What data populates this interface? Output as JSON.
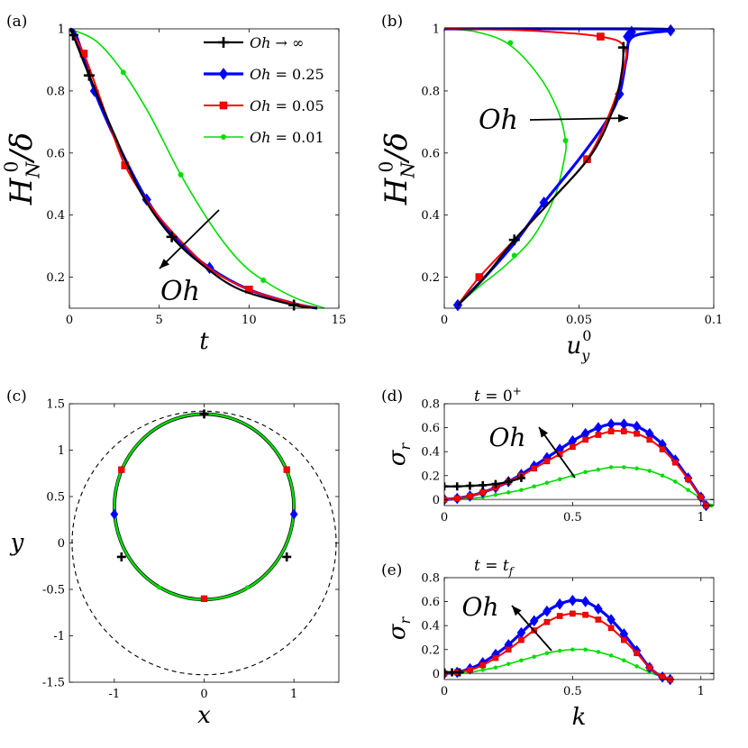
{
  "colors": {
    "inf": "#000000",
    "p25": "#0000ff",
    "p05": "#ff0000",
    "p01": "#00dd00",
    "ref": "#888888"
  },
  "chart_data": [
    {
      "id": "a",
      "panel_label": "(a)",
      "type": "line",
      "xlabel": "t",
      "ylabel": "H_N^0/δ",
      "xlim": [
        0,
        15
      ],
      "ylim": [
        0.1,
        1.0
      ],
      "xticks": [
        "0",
        "5",
        "10",
        "15"
      ],
      "yticks": [
        "0.2",
        "0.4",
        "0.6",
        "0.8",
        "1"
      ],
      "legend": [
        "Oh → ∞",
        "Oh = 0.25",
        "Oh = 0.05",
        "Oh = 0.01"
      ],
      "legend_position": "top-right",
      "annotation": "Oh",
      "series": [
        {
          "name": "Oh → ∞",
          "color": "#000000",
          "marker": "plus",
          "x": [
            0,
            0.2,
            1.1,
            2.5,
            4.0,
            5.7,
            7.5,
            9.5,
            12.5,
            13.8
          ],
          "y": [
            1.0,
            0.98,
            0.85,
            0.66,
            0.47,
            0.33,
            0.235,
            0.16,
            0.11,
            0.1
          ],
          "markers_x": [
            0.2,
            1.1,
            5.7,
            12.5
          ],
          "markers_y": [
            0.98,
            0.85,
            0.33,
            0.11
          ]
        },
        {
          "name": "Oh = 0.25",
          "color": "#0000ff",
          "marker": "diamond",
          "x": [
            0,
            0.4,
            1.4,
            2.6,
            4.3,
            6.0,
            7.8,
            10.0,
            12.5,
            13.8
          ],
          "y": [
            1.0,
            0.975,
            0.8,
            0.64,
            0.45,
            0.32,
            0.23,
            0.16,
            0.115,
            0.1
          ],
          "markers_x": [
            1.4,
            4.3,
            7.8
          ],
          "markers_y": [
            0.8,
            0.45,
            0.23
          ]
        },
        {
          "name": "Oh = 0.05",
          "color": "#ff0000",
          "marker": "square",
          "x": [
            0,
            0.8,
            2.0,
            3.1,
            4.5,
            6.3,
            8.0,
            10.0,
            12.2,
            13.8
          ],
          "y": [
            1.0,
            0.92,
            0.73,
            0.56,
            0.43,
            0.31,
            0.22,
            0.16,
            0.12,
            0.1
          ],
          "markers_x": [
            0.8,
            3.1,
            10.0
          ],
          "markers_y": [
            0.92,
            0.56,
            0.16
          ]
        },
        {
          "name": "Oh = 0.01",
          "color": "#00dd00",
          "marker": "dot",
          "x": [
            0,
            1.5,
            3.0,
            4.5,
            6.2,
            8.0,
            9.5,
            10.8,
            12.5,
            14.2
          ],
          "y": [
            1.0,
            0.96,
            0.86,
            0.72,
            0.53,
            0.36,
            0.25,
            0.19,
            0.135,
            0.1
          ],
          "markers_x": [
            3.0,
            6.2,
            10.8
          ],
          "markers_y": [
            0.86,
            0.53,
            0.19
          ]
        }
      ]
    },
    {
      "id": "b",
      "panel_label": "(b)",
      "type": "line",
      "xlabel": "u_y^0",
      "ylabel": "H_N^0/δ",
      "xlim": [
        0,
        0.1
      ],
      "ylim": [
        0.1,
        1.0
      ],
      "xticks": [
        "0",
        "0.05",
        "0.1"
      ],
      "yticks": [
        "0.2",
        "0.4",
        "0.6",
        "0.8",
        "1"
      ],
      "annotation": "Oh",
      "series": [
        {
          "name": "Oh → ∞",
          "color": "#000000",
          "marker": "plus",
          "x": [
            0.005,
            0.015,
            0.026,
            0.04,
            0.055,
            0.063,
            0.066,
            0.0665
          ],
          "y": [
            0.11,
            0.2,
            0.32,
            0.45,
            0.6,
            0.75,
            0.87,
            0.94
          ],
          "markers_x": [
            0.026,
            0.0665
          ],
          "markers_y": [
            0.32,
            0.94
          ]
        },
        {
          "name": "Oh = 0.25",
          "color": "#0000ff",
          "marker": "diamond",
          "x": [
            0.005,
            0.015,
            0.027,
            0.037,
            0.05,
            0.06,
            0.065,
            0.0675,
            0.07,
            0.084,
            0.07,
            0.0
          ],
          "y": [
            0.11,
            0.2,
            0.32,
            0.44,
            0.58,
            0.7,
            0.79,
            0.9,
            0.975,
            0.995,
            1.0,
            1.0
          ],
          "markers_x": [
            0.005,
            0.037,
            0.065,
            0.068,
            0.0695,
            0.084
          ],
          "markers_y": [
            0.11,
            0.44,
            0.79,
            0.975,
            0.99,
            0.995
          ]
        },
        {
          "name": "Oh = 0.05",
          "color": "#ff0000",
          "marker": "square",
          "x": [
            0.005,
            0.013,
            0.026,
            0.04,
            0.053,
            0.061,
            0.066,
            0.067,
            0.058,
            0.03,
            0.0
          ],
          "y": [
            0.11,
            0.2,
            0.32,
            0.45,
            0.58,
            0.72,
            0.85,
            0.94,
            0.975,
            0.995,
            1.0
          ],
          "markers_x": [
            0.013,
            0.053,
            0.058
          ],
          "markers_y": [
            0.2,
            0.58,
            0.975
          ]
        },
        {
          "name": "Oh = 0.01",
          "color": "#00dd00",
          "marker": "dot",
          "x": [
            0.005,
            0.013,
            0.023,
            0.033,
            0.041,
            0.0445,
            0.045,
            0.042,
            0.035,
            0.024,
            0.012,
            0.0
          ],
          "y": [
            0.11,
            0.17,
            0.24,
            0.33,
            0.46,
            0.58,
            0.64,
            0.74,
            0.85,
            0.95,
            0.99,
            1.0
          ],
          "markers_x": [
            0.026,
            0.045,
            0.0245
          ],
          "markers_y": [
            0.27,
            0.64,
            0.955
          ]
        }
      ]
    },
    {
      "id": "c",
      "panel_label": "(c)",
      "type": "line",
      "xlabel": "x",
      "ylabel": "y",
      "xlim": [
        -1.5,
        1.5
      ],
      "ylim": [
        -1.5,
        1.5
      ],
      "xticks": [
        "-1",
        "0",
        "1"
      ],
      "yticks": [
        "-1.5",
        "-1",
        "-0.5",
        "0",
        "0.5",
        "1",
        "1.5"
      ],
      "shapes": [
        {
          "name": "dashed-ellipse",
          "cx": 0,
          "cy": 0,
          "rx": 1.47,
          "ry": 1.42,
          "style": "dashed",
          "color": "#000000"
        },
        {
          "name": "circle-interface",
          "cx": 0,
          "cy": 0.39,
          "rx": 1.0,
          "ry": 1.0,
          "color": "#00dd00"
        }
      ],
      "markers": [
        {
          "series": "Oh → ∞",
          "color": "#000000",
          "marker": "plus",
          "x": [
            0.0,
            -0.92,
            0.92
          ],
          "y": [
            1.39,
            -0.15,
            -0.15
          ]
        },
        {
          "series": "Oh = 0.25",
          "color": "#0000ff",
          "marker": "diamond",
          "x": [
            -1.0,
            1.0
          ],
          "y": [
            0.31,
            0.31
          ]
        },
        {
          "series": "Oh = 0.05",
          "color": "#ff0000",
          "marker": "square",
          "x": [
            -0.92,
            0.92,
            0.0
          ],
          "y": [
            0.79,
            0.79,
            -0.6
          ]
        },
        {
          "series": "Oh = 0.01",
          "color": "#00dd00",
          "marker": "dot",
          "x": [
            -0.5,
            0.48
          ],
          "y": [
            -0.48,
            -0.48
          ]
        }
      ]
    },
    {
      "id": "d",
      "panel_label": "(d)",
      "type": "line",
      "title": "t = 0⁺",
      "xlabel": "k",
      "ylabel": "σ_r",
      "xlim": [
        0,
        1.05
      ],
      "ylim": [
        -0.05,
        0.8
      ],
      "xticks": [
        "0",
        "0.5",
        "1"
      ],
      "yticks": [
        "0",
        "0.2",
        "0.4",
        "0.6",
        "0.8"
      ],
      "annotation": "Oh",
      "series": [
        {
          "name": "Oh → ∞",
          "color": "#000000",
          "marker": "plus",
          "x": [
            0,
            0.05,
            0.1,
            0.15,
            0.2,
            0.25,
            0.3
          ],
          "y": [
            0.11,
            0.11,
            0.115,
            0.12,
            0.13,
            0.15,
            0.18
          ]
        },
        {
          "name": "Oh = 0.25",
          "color": "#0000ff",
          "marker": "diamond",
          "x": [
            0,
            0.05,
            0.1,
            0.15,
            0.2,
            0.25,
            0.3,
            0.35,
            0.4,
            0.45,
            0.5,
            0.55,
            0.6,
            0.65,
            0.7,
            0.75,
            0.8,
            0.85,
            0.9,
            0.95,
            1.0,
            1.02
          ],
          "y": [
            0.0,
            0.01,
            0.03,
            0.06,
            0.1,
            0.15,
            0.21,
            0.28,
            0.35,
            0.42,
            0.49,
            0.55,
            0.6,
            0.63,
            0.63,
            0.61,
            0.55,
            0.46,
            0.33,
            0.18,
            0.02,
            -0.05
          ]
        },
        {
          "name": "Oh = 0.05",
          "color": "#ff0000",
          "marker": "square",
          "x": [
            0,
            0.05,
            0.1,
            0.15,
            0.2,
            0.25,
            0.3,
            0.35,
            0.4,
            0.45,
            0.5,
            0.55,
            0.6,
            0.65,
            0.7,
            0.75,
            0.8,
            0.85,
            0.9,
            0.95,
            1.0,
            1.02
          ],
          "y": [
            0.0,
            0.01,
            0.03,
            0.06,
            0.1,
            0.15,
            0.2,
            0.26,
            0.32,
            0.38,
            0.44,
            0.5,
            0.54,
            0.57,
            0.57,
            0.55,
            0.5,
            0.42,
            0.31,
            0.17,
            0.02,
            -0.05
          ]
        },
        {
          "name": "Oh = 0.01",
          "color": "#00dd00",
          "marker": "dot",
          "x": [
            0,
            0.05,
            0.1,
            0.15,
            0.2,
            0.25,
            0.3,
            0.35,
            0.4,
            0.45,
            0.5,
            0.55,
            0.6,
            0.65,
            0.7,
            0.75,
            0.8,
            0.85,
            0.9,
            0.95,
            1.0,
            1.04
          ],
          "y": [
            0.0,
            0.0,
            0.01,
            0.02,
            0.04,
            0.06,
            0.08,
            0.11,
            0.14,
            0.17,
            0.2,
            0.23,
            0.25,
            0.27,
            0.27,
            0.26,
            0.24,
            0.2,
            0.15,
            0.08,
            0.01,
            -0.05
          ]
        }
      ]
    },
    {
      "id": "e",
      "panel_label": "(e)",
      "type": "line",
      "title": "t = t_f",
      "xlabel": "k",
      "ylabel": "σ_r",
      "xlim": [
        0,
        1.05
      ],
      "ylim": [
        -0.05,
        0.8
      ],
      "xticks": [
        "0",
        "0.5",
        "1"
      ],
      "yticks": [
        "0",
        "0.2",
        "0.4",
        "0.6",
        "0.8"
      ],
      "annotation": "Oh",
      "series": [
        {
          "name": "Oh → ∞",
          "color": "#000000",
          "marker": "plus",
          "x": [
            0,
            0.03,
            0.06
          ],
          "y": [
            0.01,
            0.01,
            0.01
          ]
        },
        {
          "name": "Oh = 0.25",
          "color": "#0000ff",
          "marker": "diamond",
          "x": [
            0,
            0.05,
            0.1,
            0.15,
            0.2,
            0.25,
            0.3,
            0.35,
            0.4,
            0.45,
            0.5,
            0.55,
            0.6,
            0.65,
            0.7,
            0.75,
            0.8,
            0.85,
            0.88
          ],
          "y": [
            0.0,
            0.01,
            0.04,
            0.09,
            0.16,
            0.24,
            0.34,
            0.44,
            0.52,
            0.58,
            0.61,
            0.6,
            0.54,
            0.45,
            0.33,
            0.19,
            0.05,
            -0.03,
            -0.05
          ]
        },
        {
          "name": "Oh = 0.05",
          "color": "#ff0000",
          "marker": "square",
          "x": [
            0,
            0.05,
            0.1,
            0.15,
            0.2,
            0.25,
            0.3,
            0.35,
            0.4,
            0.45,
            0.5,
            0.55,
            0.6,
            0.65,
            0.7,
            0.75,
            0.8,
            0.85,
            0.88
          ],
          "y": [
            0.0,
            0.01,
            0.03,
            0.07,
            0.13,
            0.2,
            0.28,
            0.36,
            0.43,
            0.48,
            0.5,
            0.49,
            0.45,
            0.38,
            0.28,
            0.17,
            0.05,
            -0.03,
            -0.05
          ]
        },
        {
          "name": "Oh = 0.01",
          "color": "#00dd00",
          "marker": "dot",
          "x": [
            0,
            0.05,
            0.1,
            0.15,
            0.2,
            0.25,
            0.3,
            0.35,
            0.4,
            0.45,
            0.5,
            0.55,
            0.6,
            0.65,
            0.7,
            0.75,
            0.8,
            0.85,
            0.88
          ],
          "y": [
            0.0,
            0.0,
            0.01,
            0.03,
            0.05,
            0.08,
            0.11,
            0.14,
            0.17,
            0.19,
            0.2,
            0.2,
            0.18,
            0.15,
            0.11,
            0.06,
            0.01,
            -0.03,
            -0.05
          ]
        }
      ]
    }
  ]
}
